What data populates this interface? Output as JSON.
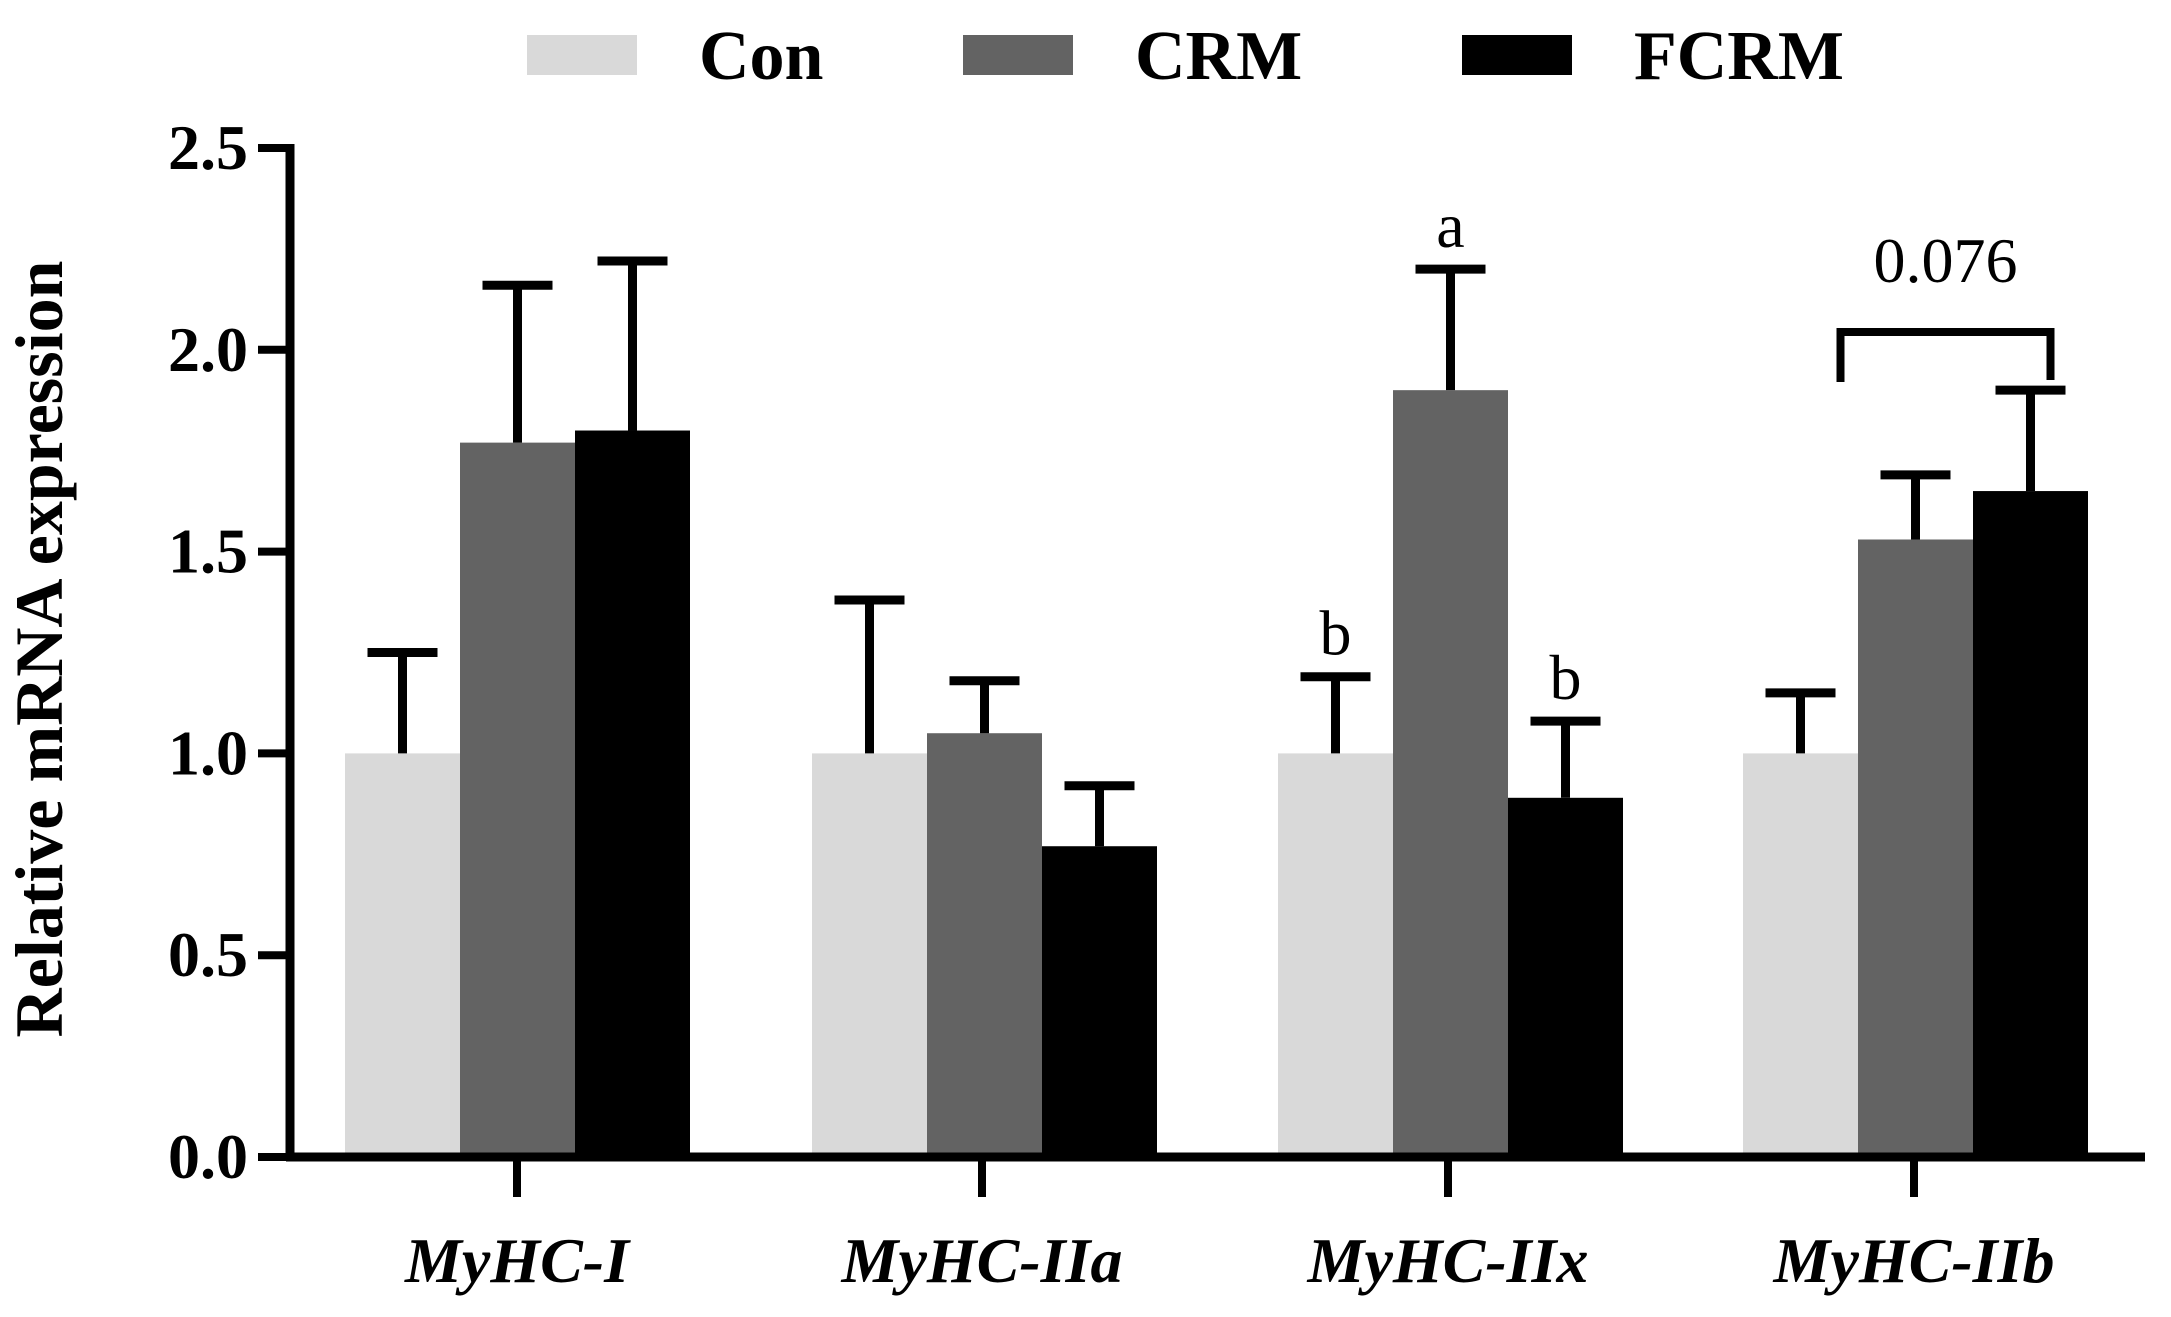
{
  "chart_data": {
    "type": "bar",
    "title": "",
    "xlabel": "",
    "ylabel": "Relative mRNA expression",
    "ylim": [
      0,
      2.5
    ],
    "yticks": [
      "0.0",
      "0.5",
      "1.0",
      "1.5",
      "2.0",
      "2.5"
    ],
    "categories": [
      "MyHC-I",
      "MyHC-IIa",
      "MyHC-IIx",
      "MyHC-IIb"
    ],
    "series": [
      {
        "name": "Con",
        "color": "#d9d9d9",
        "values": [
          1.0,
          1.0,
          1.0,
          1.0
        ],
        "errors": [
          0.25,
          0.38,
          0.19,
          0.15
        ]
      },
      {
        "name": "CRM",
        "color": "#636363",
        "values": [
          1.77,
          1.05,
          1.9,
          1.53
        ],
        "errors": [
          0.39,
          0.13,
          0.3,
          0.16
        ]
      },
      {
        "name": "FCRM",
        "color": "#000000",
        "values": [
          1.8,
          0.77,
          0.89,
          1.65
        ],
        "errors": [
          0.42,
          0.15,
          0.19,
          0.25
        ]
      }
    ],
    "legend_position": "top",
    "annotations": {
      "letters": [
        {
          "category": 2,
          "series": 0,
          "text": "b"
        },
        {
          "category": 2,
          "series": 1,
          "text": "a"
        },
        {
          "category": 2,
          "series": 2,
          "text": "b"
        }
      ],
      "brackets": [
        {
          "category": 3,
          "from_series": 0,
          "to_series": 2,
          "text": "0.076"
        }
      ]
    }
  }
}
